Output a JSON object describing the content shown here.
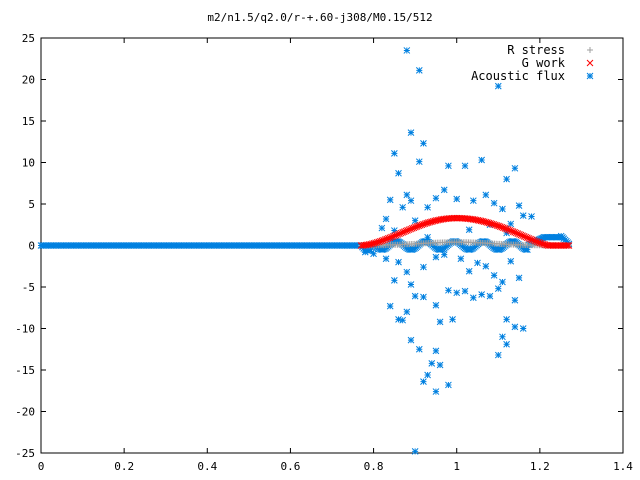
{
  "chart_data": {
    "type": "scatter",
    "title": "m2/n1.5/q2.0/r-+.60-j308/M0.15/512",
    "xlabel": "",
    "ylabel": "",
    "xlim": [
      0,
      1.4
    ],
    "ylim": [
      -25,
      25
    ],
    "x_ticks": [
      "0",
      "0.2",
      "0.4",
      "0.6",
      "0.8",
      "1",
      "1.2",
      "1.4"
    ],
    "y_ticks": [
      "-25",
      "-20",
      "-15",
      "-10",
      "-5",
      "0",
      "5",
      "10",
      "15",
      "20",
      "25"
    ],
    "legend_position": "top-right",
    "grid": false,
    "series": [
      {
        "name": "R stress",
        "marker": "+",
        "color": "#a0a0a0",
        "curve": {
          "description": "near-zero band between x 0.77 and 1.27, slight positive bump",
          "x_start": 0.77,
          "x_end": 1.27,
          "peak_x": 1.0,
          "peak_y": 0.4
        }
      },
      {
        "name": "G work",
        "marker": "x",
        "color": "#ff0000",
        "curve": {
          "description": "arch from zero at x 0.77 rising to about 3.3 near x 1.0 and back to zero near x 1.22",
          "x_start": 0.77,
          "x_end": 1.27,
          "peak_x": 1.0,
          "peak_y": 3.3
        }
      },
      {
        "name": "Acoustic flux",
        "marker": "*",
        "color": "#0080e0",
        "flat_region": {
          "x_start": 0,
          "x_end": 0.77,
          "y": 0
        },
        "scatter_points": [
          [
            0.88,
            23.5
          ],
          [
            0.91,
            21.1
          ],
          [
            1.1,
            19.2
          ],
          [
            0.89,
            13.6
          ],
          [
            0.92,
            12.3
          ],
          [
            0.98,
            9.6
          ],
          [
            1.02,
            9.6
          ],
          [
            1.12,
            8.0
          ],
          [
            1.14,
            9.3
          ],
          [
            1.06,
            10.3
          ],
          [
            0.91,
            10.1
          ],
          [
            0.85,
            11.1
          ],
          [
            0.86,
            8.7
          ],
          [
            0.88,
            6.1
          ],
          [
            0.89,
            5.4
          ],
          [
            0.84,
            5.5
          ],
          [
            0.87,
            4.6
          ],
          [
            0.9,
            3.0
          ],
          [
            0.93,
            4.6
          ],
          [
            0.95,
            5.7
          ],
          [
            0.97,
            6.7
          ],
          [
            1.0,
            5.6
          ],
          [
            1.04,
            5.4
          ],
          [
            1.07,
            6.1
          ],
          [
            1.09,
            5.1
          ],
          [
            1.11,
            4.4
          ],
          [
            1.13,
            2.6
          ],
          [
            1.15,
            4.8
          ],
          [
            0.83,
            3.2
          ],
          [
            0.82,
            2.1
          ],
          [
            0.85,
            1.8
          ],
          [
            0.93,
            1.0
          ],
          [
            1.03,
            1.9
          ],
          [
            1.08,
            2.5
          ],
          [
            1.12,
            1.5
          ],
          [
            1.16,
            3.6
          ],
          [
            1.18,
            3.5
          ],
          [
            0.78,
            -0.8
          ],
          [
            0.8,
            -1.0
          ],
          [
            0.83,
            -1.6
          ],
          [
            0.86,
            -2.0
          ],
          [
            0.88,
            -3.2
          ],
          [
            0.92,
            -2.6
          ],
          [
            0.95,
            -1.4
          ],
          [
            0.97,
            -1.1
          ],
          [
            1.01,
            -1.6
          ],
          [
            1.03,
            -3.1
          ],
          [
            1.05,
            -2.1
          ],
          [
            1.07,
            -2.5
          ],
          [
            1.09,
            -3.6
          ],
          [
            1.11,
            -4.4
          ],
          [
            1.13,
            -1.9
          ],
          [
            1.15,
            -3.9
          ],
          [
            0.85,
            -4.2
          ],
          [
            0.89,
            -4.7
          ],
          [
            0.9,
            -6.1
          ],
          [
            0.95,
            -7.2
          ],
          [
            0.98,
            -5.4
          ],
          [
            1.0,
            -5.7
          ],
          [
            1.02,
            -5.5
          ],
          [
            1.04,
            -6.3
          ],
          [
            1.06,
            -5.9
          ],
          [
            1.08,
            -6.1
          ],
          [
            1.1,
            -5.2
          ],
          [
            1.14,
            -6.6
          ],
          [
            0.84,
            -7.3
          ],
          [
            0.86,
            -8.9
          ],
          [
            0.87,
            -9.0
          ],
          [
            0.88,
            -8.0
          ],
          [
            0.92,
            -6.2
          ],
          [
            0.96,
            -9.2
          ],
          [
            0.99,
            -8.9
          ],
          [
            1.12,
            -8.9
          ],
          [
            1.14,
            -9.8
          ],
          [
            1.16,
            -10.0
          ],
          [
            1.11,
            -11.0
          ],
          [
            0.89,
            -11.4
          ],
          [
            0.91,
            -12.5
          ],
          [
            0.95,
            -12.7
          ],
          [
            0.94,
            -14.2
          ],
          [
            0.96,
            -14.4
          ],
          [
            0.93,
            -15.6
          ],
          [
            0.92,
            -16.4
          ],
          [
            0.98,
            -16.8
          ],
          [
            0.95,
            -17.6
          ],
          [
            1.1,
            -13.2
          ],
          [
            1.12,
            -11.9
          ],
          [
            0.9,
            -24.8
          ]
        ],
        "dense_curve": {
          "description": "dense oscillating band from x 0.77 to 1.27 near zero, rising to about 1 near x 1.22-1.27",
          "x_start": 0.77,
          "x_end": 1.27
        }
      }
    ]
  }
}
